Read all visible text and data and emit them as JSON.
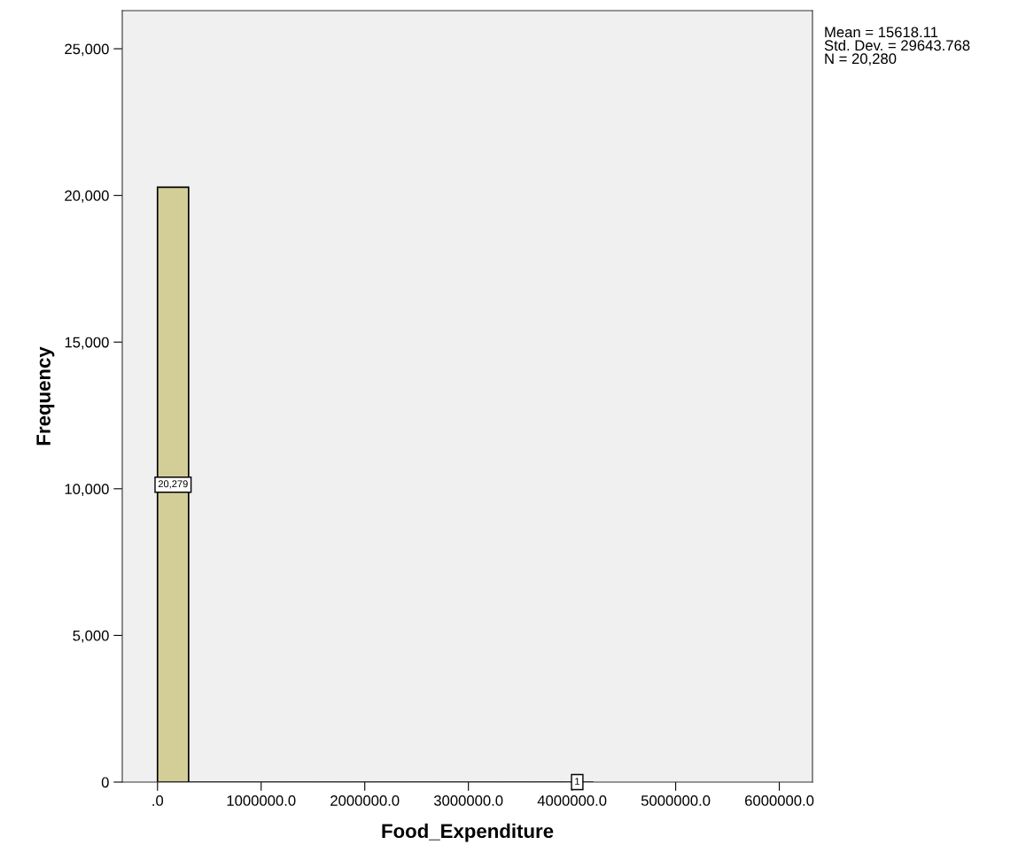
{
  "chart_data": {
    "type": "histogram",
    "xlabel": "Food_Expenditure",
    "ylabel": "Frequency",
    "bins": [
      0,
      300000,
      600000,
      900000,
      1200000,
      1500000,
      1800000,
      2100000,
      2400000,
      2700000,
      3000000,
      3300000,
      3600000,
      3900000,
      4200000
    ],
    "values": [
      20279,
      0,
      0,
      0,
      0,
      0,
      0,
      0,
      0,
      0,
      0,
      0,
      0,
      1
    ],
    "value_labels": [
      "20,279",
      null,
      null,
      null,
      null,
      null,
      null,
      null,
      null,
      null,
      null,
      null,
      null,
      "1"
    ],
    "color": "#d3ce97",
    "xlim": [
      -340000,
      6320000
    ],
    "xticks": [
      {
        "value": 0,
        "label": ".0"
      },
      {
        "value": 1000000,
        "label": "1000000.0"
      },
      {
        "value": 2000000,
        "label": "2000000.0"
      },
      {
        "value": 3000000,
        "label": "3000000.0"
      },
      {
        "value": 4000000,
        "label": "4000000.0"
      },
      {
        "value": 5000000,
        "label": "5000000.0"
      },
      {
        "value": 6000000,
        "label": "6000000.0"
      }
    ],
    "ylim": [
      0,
      26300
    ],
    "yticks": [
      0,
      {
        "value": 5000,
        "label": "5,000"
      },
      {
        "value": 10000,
        "label": "10,000"
      },
      {
        "value": 15000,
        "label": "15,000"
      },
      {
        "value": 20000,
        "label": "20,000"
      },
      {
        "value": 25000,
        "label": "25,000"
      }
    ],
    "annotations": [
      "Mean = 15618.11",
      "Std. Dev. = 29643.768",
      "N = 20,280"
    ],
    "grid": false
  }
}
